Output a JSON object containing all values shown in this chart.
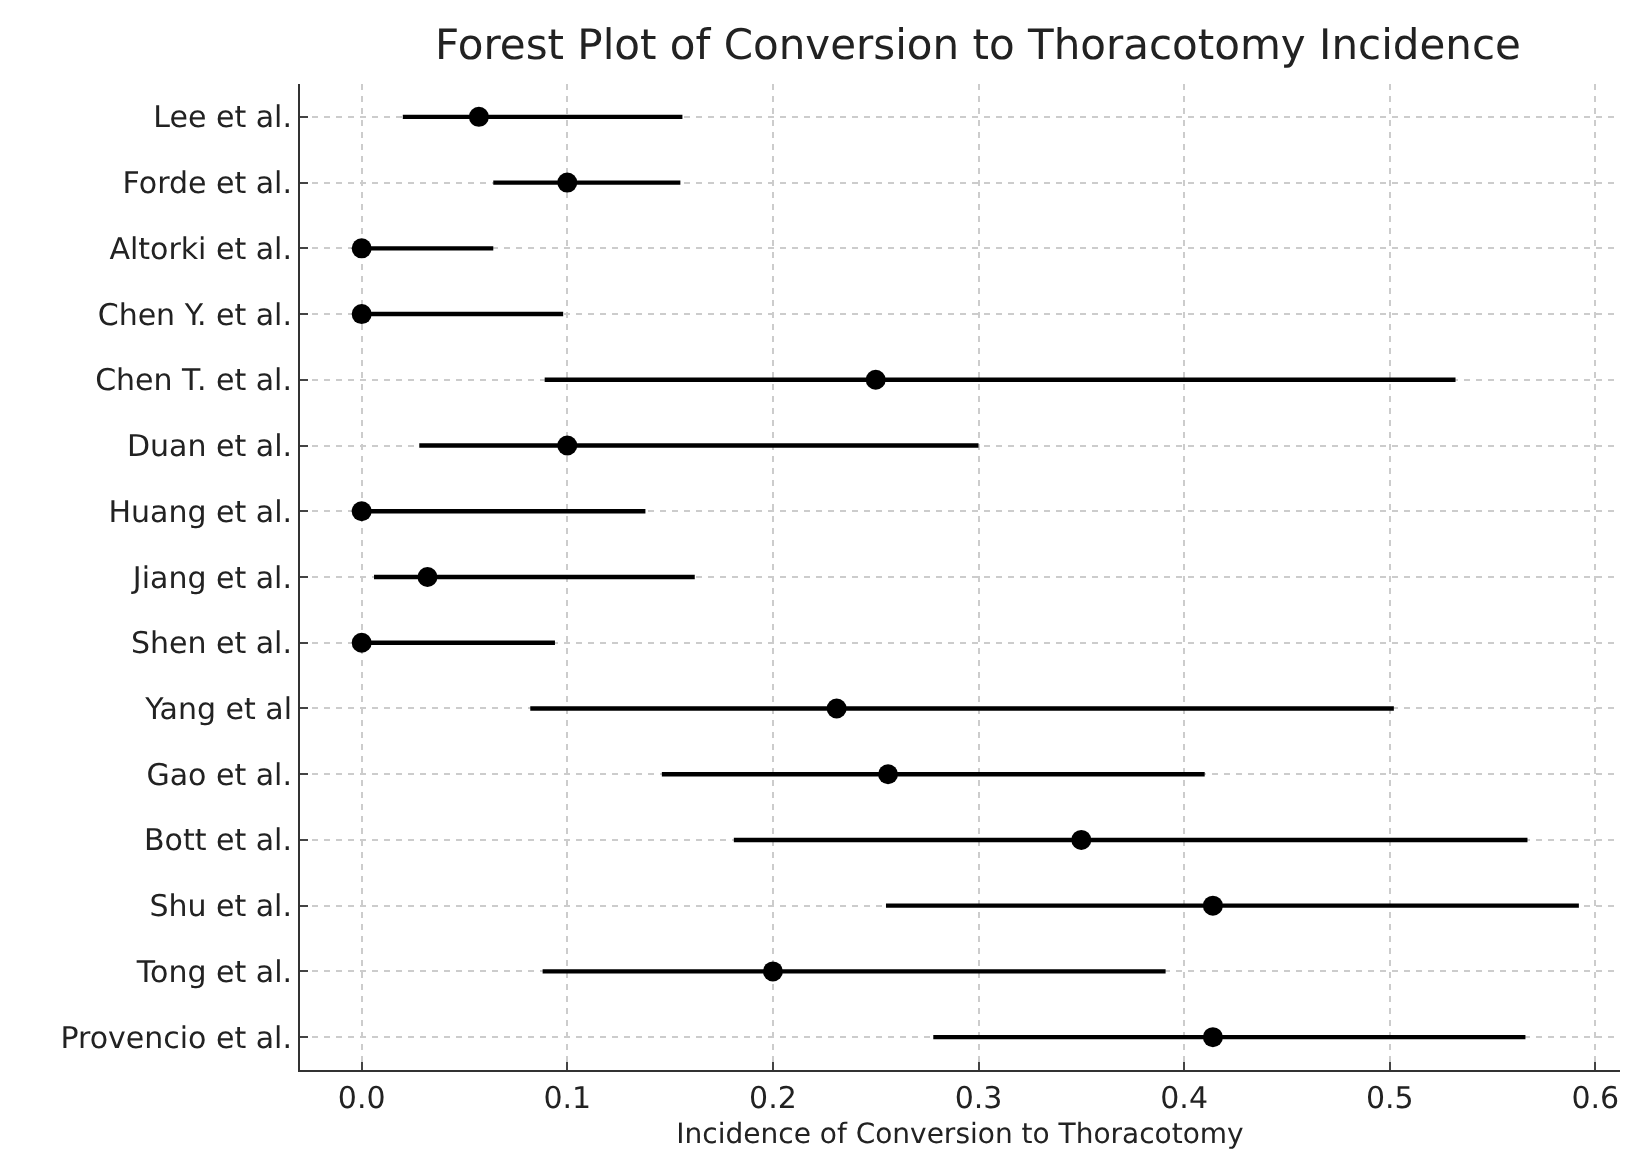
{
  "chart_data": {
    "type": "scatter",
    "orientation": "horizontal",
    "title": "Forest Plot of Conversion to Thoracotomy Incidence",
    "xlabel": "Incidence of Conversion to Thoracotomy",
    "categories": [
      "Lee et al.",
      "Forde et al.",
      "Altorki et al.",
      "Chen Y. et al.",
      "Chen T. et al.",
      "Duan et al.",
      "Huang et al.",
      "Jiang et al.",
      "Shen et al.",
      "Yang et al",
      "Gao et al.",
      "Bott et al.",
      "Shu et al.",
      "Tong et al.",
      "Provencio et al."
    ],
    "values": [
      0.057,
      0.1,
      0.0,
      0.0,
      0.25,
      0.1,
      0.0,
      0.032,
      0.0,
      0.231,
      0.256,
      0.35,
      0.414,
      0.2,
      0.414
    ],
    "errors": [
      [
        0.02,
        0.156
      ],
      [
        0.064,
        0.155
      ],
      [
        0.0,
        0.064
      ],
      [
        0.0,
        0.098
      ],
      [
        0.089,
        0.532
      ],
      [
        0.028,
        0.3
      ],
      [
        0.0,
        0.138
      ],
      [
        0.006,
        0.162
      ],
      [
        0.0,
        0.094
      ],
      [
        0.082,
        0.502
      ],
      [
        0.146,
        0.41
      ],
      [
        0.181,
        0.567
      ],
      [
        0.255,
        0.592
      ],
      [
        0.088,
        0.391
      ],
      [
        0.278,
        0.566
      ]
    ],
    "color": "#000000",
    "marker": "circle",
    "grid": true,
    "xlim": [
      -0.03,
      0.612
    ],
    "xticks": [
      {
        "value": 0,
        "label": "0.0"
      },
      0.1,
      0.2,
      0.3,
      0.4,
      0.5,
      0.6
    ]
  }
}
